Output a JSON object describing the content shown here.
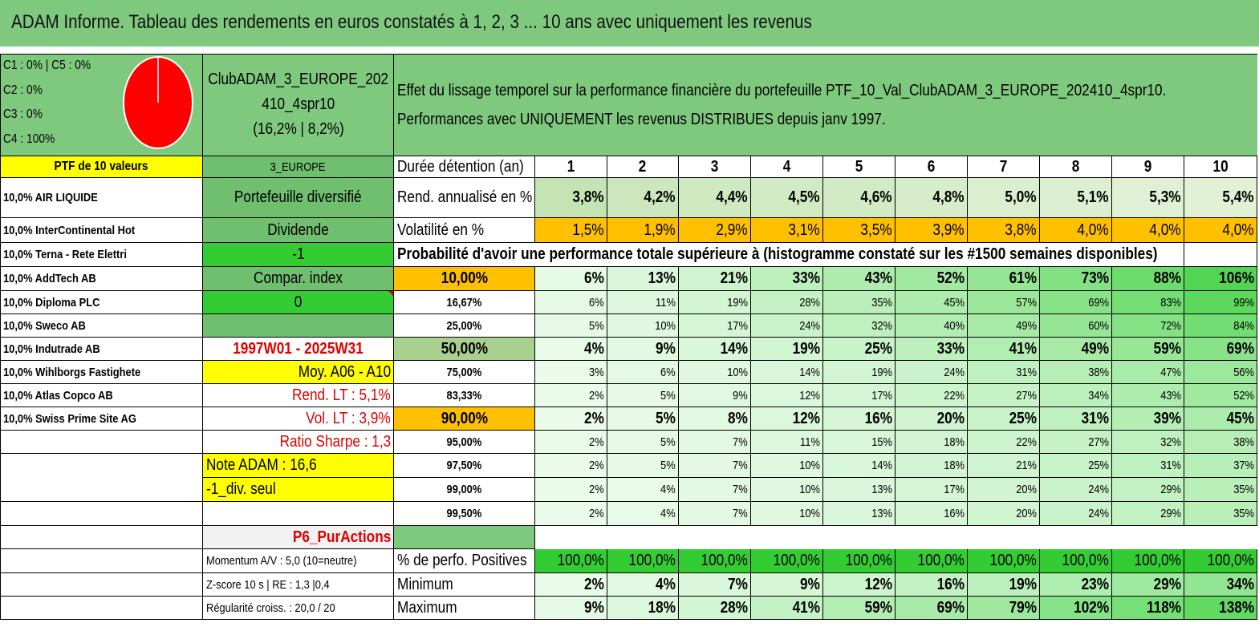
{
  "title": "ADAM Informe. Tableau des rendements en euros constatés à 1, 2, 3 ... 10 ans avec uniquement les revenus",
  "colors": {
    "header_green": "#7fc97f",
    "mid_green": "#6fbf6f",
    "bright_green": "#33cc33",
    "yellow": "#ffff00",
    "orange": "#ffc000",
    "light_gray": "#f2f2f2",
    "red_text": "#e00000",
    "pie_red": "#ff0000"
  },
  "classes": [
    "C1 : 0% | C5 : 0%",
    "C2 : 0%",
    "C3 : 0%",
    "C4 : 100%"
  ],
  "portfolio": {
    "name_line1": "ClubADAM_3_EUROPE_202",
    "name_line2": "410_4spr10",
    "name_line3": "(16,2% | 8,2%)"
  },
  "description": {
    "line1": "Effet du lissage temporel sur la performance financière du portefeuille PTF_10_Val_ClubADAM_3_EUROPE_202410_4spr10.",
    "line2": "Performances avec UNIQUEMENT les revenus DISTRIBUES depuis janv 1997."
  },
  "ptf_header": "PTF de 10 valeurs",
  "holdings": [
    "10,0% AIR LIQUIDE",
    "10,0% InterContinental Hot",
    "10,0% Terna - Rete Elettri",
    "10,0% AddTech AB",
    "10,0% Diploma PLC",
    "10,0% Sweco AB",
    "10,0% Indutrade AB",
    "10,0% Wihlborgs Fastighete",
    "10,0% Atlas Copco AB",
    "10,0% Swiss Prime Site AG"
  ],
  "info": {
    "region": "3_EUROPE",
    "type": "Portefeuille diversifié",
    "dividend_label": "Dividende",
    "dividend_value": "-1",
    "compar_label": "Compar. index",
    "compar_value": "0",
    "period": "1997W01 - 2025W31",
    "moy": "Moy. A06 - A10",
    "rend_lt": "Rend. LT : 5,1%",
    "vol_lt": "Vol. LT : 3,9%",
    "sharpe": "Ratio Sharpe : 1,3",
    "note": "Note ADAM : 16,6",
    "div_seul": "-1_div. seul",
    "p6": "P6_PurActions",
    "momentum": "Momentum A/V : 5,0 (10=neutre)",
    "zscore": "Z-score 10 s | RE : 1,3 |0,4",
    "regularite": "Régularité croiss. : 20,0 / 20"
  },
  "table": {
    "duration_label": "Durée détention (an)",
    "years": [
      "1",
      "2",
      "3",
      "4",
      "5",
      "6",
      "7",
      "8",
      "9",
      "10"
    ],
    "rend_label": "Rend. annualisé en %",
    "rend": [
      "3,8%",
      "4,2%",
      "4,4%",
      "4,5%",
      "4,6%",
      "4,8%",
      "5,0%",
      "5,1%",
      "5,3%",
      "5,4%"
    ],
    "vol_label": "Volatilité en %",
    "vol": [
      "1,5%",
      "1,9%",
      "2,9%",
      "3,1%",
      "3,5%",
      "3,9%",
      "3,8%",
      "4,0%",
      "4,0%",
      "4,0%"
    ],
    "prob_title": "Probabilité d'avoir une performance totale supérieure à (histogramme constaté sur les #1500 semaines disponibles)",
    "prob_rows": [
      {
        "label": "10,00%",
        "values": [
          "6%",
          "13%",
          "21%",
          "33%",
          "43%",
          "52%",
          "61%",
          "73%",
          "88%",
          "106%"
        ]
      },
      {
        "label": "16,67%",
        "values": [
          "6%",
          "11%",
          "19%",
          "28%",
          "35%",
          "45%",
          "57%",
          "69%",
          "83%",
          "99%"
        ]
      },
      {
        "label": "25,00%",
        "values": [
          "5%",
          "10%",
          "17%",
          "24%",
          "32%",
          "40%",
          "49%",
          "60%",
          "72%",
          "84%"
        ]
      },
      {
        "label": "50,00%",
        "values": [
          "4%",
          "9%",
          "14%",
          "19%",
          "25%",
          "33%",
          "41%",
          "49%",
          "59%",
          "69%"
        ]
      },
      {
        "label": "75,00%",
        "values": [
          "3%",
          "6%",
          "10%",
          "14%",
          "19%",
          "24%",
          "31%",
          "38%",
          "47%",
          "56%"
        ]
      },
      {
        "label": "83,33%",
        "values": [
          "2%",
          "5%",
          "9%",
          "12%",
          "17%",
          "22%",
          "27%",
          "34%",
          "43%",
          "52%"
        ]
      },
      {
        "label": "90,00%",
        "values": [
          "2%",
          "5%",
          "8%",
          "12%",
          "16%",
          "20%",
          "25%",
          "31%",
          "39%",
          "45%"
        ]
      },
      {
        "label": "95,00%",
        "values": [
          "2%",
          "5%",
          "7%",
          "11%",
          "15%",
          "18%",
          "22%",
          "27%",
          "32%",
          "38%"
        ]
      },
      {
        "label": "97,50%",
        "values": [
          "2%",
          "5%",
          "7%",
          "10%",
          "14%",
          "18%",
          "21%",
          "25%",
          "31%",
          "37%"
        ]
      },
      {
        "label": "99,00%",
        "values": [
          "2%",
          "4%",
          "7%",
          "10%",
          "13%",
          "17%",
          "20%",
          "24%",
          "29%",
          "35%"
        ]
      },
      {
        "label": "99,50%",
        "values": [
          "2%",
          "4%",
          "7%",
          "10%",
          "13%",
          "16%",
          "20%",
          "24%",
          "29%",
          "35%"
        ]
      }
    ],
    "pos_label": "% de perfo. Positives",
    "pos": [
      "100,0%",
      "100,0%",
      "100,0%",
      "100,0%",
      "100,0%",
      "100,0%",
      "100,0%",
      "100,0%",
      "100,0%",
      "100,0%"
    ],
    "min_label": "Minimum",
    "min": [
      "2%",
      "4%",
      "7%",
      "9%",
      "12%",
      "16%",
      "19%",
      "23%",
      "29%",
      "34%"
    ],
    "max_label": "Maximum",
    "max": [
      "9%",
      "18%",
      "28%",
      "41%",
      "59%",
      "69%",
      "79%",
      "102%",
      "118%",
      "138%"
    ]
  }
}
